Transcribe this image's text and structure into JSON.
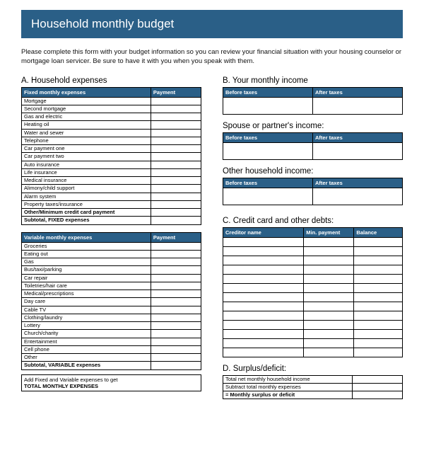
{
  "title": "Household monthly budget",
  "intro": "Please complete this form with your budget information so you can review your financial situation with your housing counselor or mortgage loan servicer. Be sure to have it with you when you speak with them.",
  "colors": {
    "header_bg": "#2a5f87",
    "header_fg": "#ffffff",
    "border": "#000000",
    "text": "#000000",
    "page_bg": "#ffffff"
  },
  "sectionA": {
    "heading": "A. Household expenses",
    "fixed": {
      "col1": "Fixed monthly expenses",
      "col2": "Payment",
      "rows": [
        "Mortgage",
        "Second mortgage",
        "Gas and electric",
        "Heating oil",
        "Water and sewer",
        "Telephone",
        "Car payment one",
        "Car payment two",
        "Auto insurance",
        "Life insurance",
        "Medical insurance",
        "Alimony/child support",
        "Alarm system",
        "Property taxes/insurance"
      ],
      "other_row": "Other/Minimum credit card payment",
      "subtotal_row": "Subtotal, FIXED expenses"
    },
    "variable": {
      "col1": "Variable monthly expenses",
      "col2": "Payment",
      "rows": [
        "Groceries",
        "Eating out",
        "Gas",
        "Bus/taxi/parking",
        "Car repair",
        "Toiletries/hair care",
        "Medical/prescriptions",
        "Day care",
        "Cable TV",
        "Clothing/laundry",
        "Lottery",
        "Church/charity",
        "Entertainment",
        "Cell phone",
        "Other"
      ],
      "subtotal_row": "Subtotal, VARIABLE expenses"
    },
    "total_box_line1": "Add Fixed and Variable expenses to get",
    "total_box_line2": "TOTAL MONTHLY EXPENSES"
  },
  "sectionB": {
    "heading": "B. Your monthly income",
    "col1": "Before taxes",
    "col2": "After taxes",
    "spouse_heading": "Spouse or partner's income:",
    "other_heading": "Other household income:"
  },
  "sectionC": {
    "heading": "C. Credit card and other debts:",
    "col1": "Creditor name",
    "col2": "Min. payment",
    "col3": "Balance",
    "blank_rows": 13
  },
  "sectionD": {
    "heading": "D. Surplus/deficit:",
    "rows": [
      "Total net monthly household income",
      "Subtract total monthly expenses"
    ],
    "result_row": "= Monthly surplus or deficit"
  }
}
